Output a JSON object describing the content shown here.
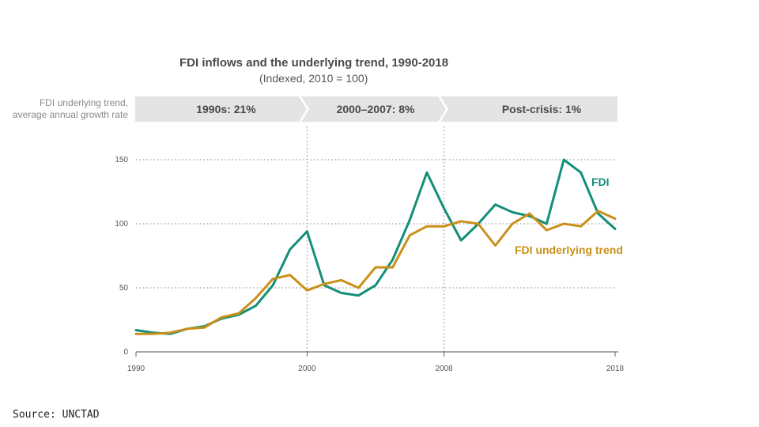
{
  "chart_data": {
    "type": "line",
    "title": "FDI inflows and the underlying trend, 1990-2018",
    "subtitle": "(Indexed, 2010 = 100)",
    "xlim": [
      1990,
      2018
    ],
    "ylim": [
      0,
      150
    ],
    "x_ticks": [
      "1990",
      "2000",
      "2008",
      "2018"
    ],
    "x_tick_values": [
      1990,
      2000,
      2008,
      2018
    ],
    "y_ticks": [
      "0",
      "50",
      "100",
      "150"
    ],
    "y_tick_values": [
      0,
      50,
      100,
      150
    ],
    "grid": "dotted horizontal and vertical",
    "band": {
      "label_line1": "FDI underlying trend,",
      "label_line2": "average annual growth rate",
      "periods": [
        {
          "label": "1990s: 21%",
          "from": 1990,
          "to": 2000
        },
        {
          "label": "2000–2007: 8%",
          "from": 2000,
          "to": 2007
        },
        {
          "label": "Post-crisis: 1%",
          "from": 2007,
          "to": 2018
        }
      ]
    },
    "x": [
      1990,
      1991,
      1992,
      1993,
      1994,
      1995,
      1996,
      1997,
      1998,
      1999,
      2000,
      2001,
      2002,
      2003,
      2004,
      2005,
      2006,
      2007,
      2008,
      2009,
      2010,
      2011,
      2012,
      2013,
      2014,
      2015,
      2016,
      2017,
      2018
    ],
    "series": [
      {
        "name": "FDI",
        "color": "#138f78",
        "values": [
          17,
          15,
          14,
          18,
          20,
          26,
          29,
          36,
          52,
          80,
          94,
          52,
          46,
          44,
          52,
          72,
          103,
          140,
          112,
          87,
          100,
          115,
          109,
          106,
          100,
          150,
          140,
          108,
          96
        ]
      },
      {
        "name": "FDI underlying trend",
        "color": "#c9901a",
        "values": [
          14,
          14,
          15,
          18,
          19,
          27,
          30,
          42,
          57,
          60,
          48,
          53,
          56,
          50,
          66,
          66,
          91,
          98,
          98,
          102,
          100,
          83,
          100,
          108,
          95,
          100,
          98,
          110,
          104
        ]
      }
    ]
  },
  "source": "Source: UNCTAD"
}
